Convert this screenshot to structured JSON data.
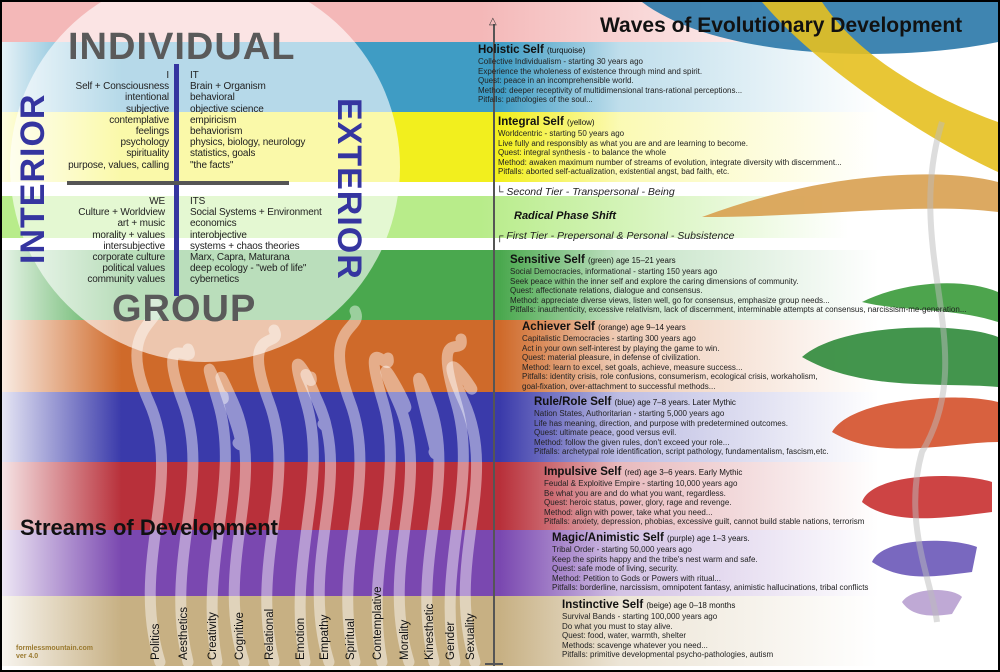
{
  "title": "Waves of Evolutionary Development",
  "quadrant": {
    "top_label": "INDIVIDUAL",
    "bottom_label": "GROUP",
    "left_label": "INTERIOR",
    "right_label": "EXTERIOR",
    "upper_left": [
      "I",
      "Self + Consciousness",
      "intentional",
      "subjective",
      "contemplative",
      "feelings",
      "psychology",
      "spirituality",
      "purpose, values, calling"
    ],
    "upper_right": [
      "IT",
      "Brain + Organism",
      "behavioral",
      "objective science",
      "empiricism",
      "behaviorism",
      "physics, biology, neurology",
      "statistics, goals",
      "\"the facts\""
    ],
    "lower_left": [
      "WE",
      "Culture + Worldview",
      "art + music",
      "morality + values",
      "intersubjective",
      "corporate culture",
      "political values",
      "community values"
    ],
    "lower_right": [
      "ITS",
      "Social Systems + Environment",
      "economics",
      "interobjective",
      "systems + chaos theories",
      "Marx, Capra, Maturana",
      "deep ecology - \"web of life\"",
      "cybernetics"
    ]
  },
  "tiers": {
    "second": "Second Tier - Transpersonal - Being",
    "shift": "Radical Phase Shift",
    "first": "First Tier - Prepersonal & Personal - Subsistence"
  },
  "stages": [
    {
      "name": "Holistic Self",
      "meta": "(turquoise)",
      "color": "#3f9cc4",
      "lines": [
        "Collective Individualism - starting 30 years ago",
        "Experience the wholeness of existence through mind and spirit.",
        "Quest: peace in an incomprehensible world.",
        "Method: deeper receptivity of multidimensional trans-rational perceptions...",
        "Pitfalls: pathologies of the soul..."
      ]
    },
    {
      "name": "Integral Self",
      "meta": "(yellow)",
      "color": "#f2ef1e",
      "lines": [
        "Worldcentric - starting 50 years ago",
        "Live fully and responsibly as what you are and are learning to become.",
        "Quest: integral synthesis - to balance the whole",
        "Method: awaken maximum number of streams of evolution, integrate diversity with discernment...",
        "Pitfalls: aborted self-actualization, existential angst, bad faith, etc."
      ]
    },
    {
      "name": "Sensitive Self",
      "meta": "(green) age 15–21 years",
      "color": "#4aa84e",
      "lines": [
        "Social Democracies, informational - starting 150 years ago",
        "Seek peace within the inner self and explore the caring dimensions of community.",
        "Quest: affectionate relations, dialogue and consensus.",
        "Method: appreciate diverse views, listen well, go for consensus, emphasize group needs...",
        "Pitfalls: inauthenticity, excessive relativism, lack of discernment, interminable attempts at consensus, narcissism-me-generation..."
      ]
    },
    {
      "name": "Achiever Self",
      "meta": "(orange) age 9–14 years",
      "color": "#cf6a2a",
      "lines": [
        "Capitalistic Democracies - starting 300 years ago",
        "Act in your own self-interest by playing the game to win.",
        "Quest: material pleasure, in defense of civilization.",
        "Method: learn to excel, set goals, achieve, measure success...",
        "Pitfalls: identity crisis, role confusions, consumerism, ecological crisis, workaholism,",
        "goal-fixation, over-attachment to successful methods..."
      ]
    },
    {
      "name": "Rule/Role Self",
      "meta": "(blue) age 7–8 years. Later Mythic",
      "color": "#3a3aaa",
      "lines": [
        "Nation States, Authoritarian - starting 5,000 years ago",
        "Life has meaning, direction, and purpose with predetermined outcomes.",
        "Quest: ultimate peace, good versus evil.",
        "Method: follow the given rules, don't exceed your role...",
        "Pitfalls: archetypal role identification, script pathology, fundamentalism, fascism,etc."
      ]
    },
    {
      "name": "Impulsive Self",
      "meta": "(red) age 3–6 years. Early Mythic",
      "color": "#b8303a",
      "lines": [
        "Feudal & Exploitive Empire - starting 10,000 years ago",
        "Be what you are and do what you want, regardless.",
        "Quest: heroic status, power, glory, rage and revenge.",
        "Method: align with power, take what you need...",
        "Pitfalls: anxiety, depression, phobias, excessive guilt, cannot build stable nations, terrorism"
      ]
    },
    {
      "name": "Magic/Animistic Self",
      "meta": "(purple) age 1–3 years.",
      "color": "#7a48b0",
      "lines": [
        "Tribal Order - starting 50,000 years ago",
        "Keep the spirits happy and the tribe's nest warm and safe.",
        "Quest: safe mode of living, security.",
        "Method: Petition to Gods or Powers with ritual...",
        "Pitfalls: borderline, narcissism, omnipotent fantasy, animistic hallucinations, tribal conflicts"
      ]
    },
    {
      "name": "Instinctive Self",
      "meta": "(beige) age 0–18 months",
      "color": "#c7b083",
      "lines": [
        "Survival Bands - starting 100,000 years ago",
        "Do what you must to stay alive.",
        "Quest: food, water, warmth, shelter",
        "Methods: scavenge whatever you need...",
        "Pitfalls: primitive developmental psycho-pathologies, autism"
      ]
    }
  ],
  "streams": {
    "title": "Streams of Development",
    "items": [
      "Politics",
      "Aesthetics",
      "Creativity",
      "Cognitive",
      "Relational",
      "Emotion",
      "Empathy",
      "Spiritual",
      "Contemplative",
      "Morality",
      "Kinesthetic",
      "Gender",
      "Sexuality"
    ]
  },
  "credit": {
    "site": "formlessmountain.com",
    "version": "ver 4.0"
  }
}
